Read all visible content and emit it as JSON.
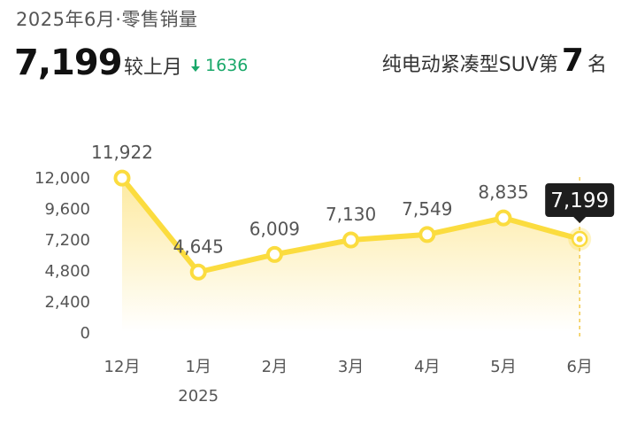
{
  "header": {
    "subtitle": "2025年6月·零售销量",
    "value": "7,199",
    "compare_label": "较上月",
    "change_icon": "arrow-down-icon",
    "change_value": "1636",
    "rank_prefix": "纯电动紧凑型SUV第",
    "rank_number": "7",
    "rank_suffix": "名"
  },
  "colors": {
    "line": "#fbdc3f",
    "area_top": "#fdeaa0",
    "area_bottom": "#ffffff",
    "down": "#1aa86a",
    "tooltip_bg": "#1e1e1e",
    "highlight_dash": "#f2c94c"
  },
  "chart_data": {
    "type": "line",
    "categories": [
      "12月",
      "1月",
      "2月",
      "3月",
      "4月",
      "5月",
      "6月"
    ],
    "year_label": "2025",
    "year_label_under": "1月",
    "values": [
      11922,
      4645,
      6009,
      7130,
      7549,
      8835,
      7199
    ],
    "data_labels": [
      "11,922",
      "4,645",
      "6,009",
      "7,130",
      "7,549",
      "8,835",
      "7,199"
    ],
    "yticks": [
      0,
      2400,
      4800,
      7200,
      9600,
      12000
    ],
    "ytick_labels": [
      "0",
      "2,400",
      "4,800",
      "7,200",
      "9,600",
      "12,000"
    ],
    "ylim": [
      0,
      12000
    ],
    "area_fill": true,
    "grid": false,
    "highlight_index": 6,
    "highlight_label": "7,199"
  }
}
